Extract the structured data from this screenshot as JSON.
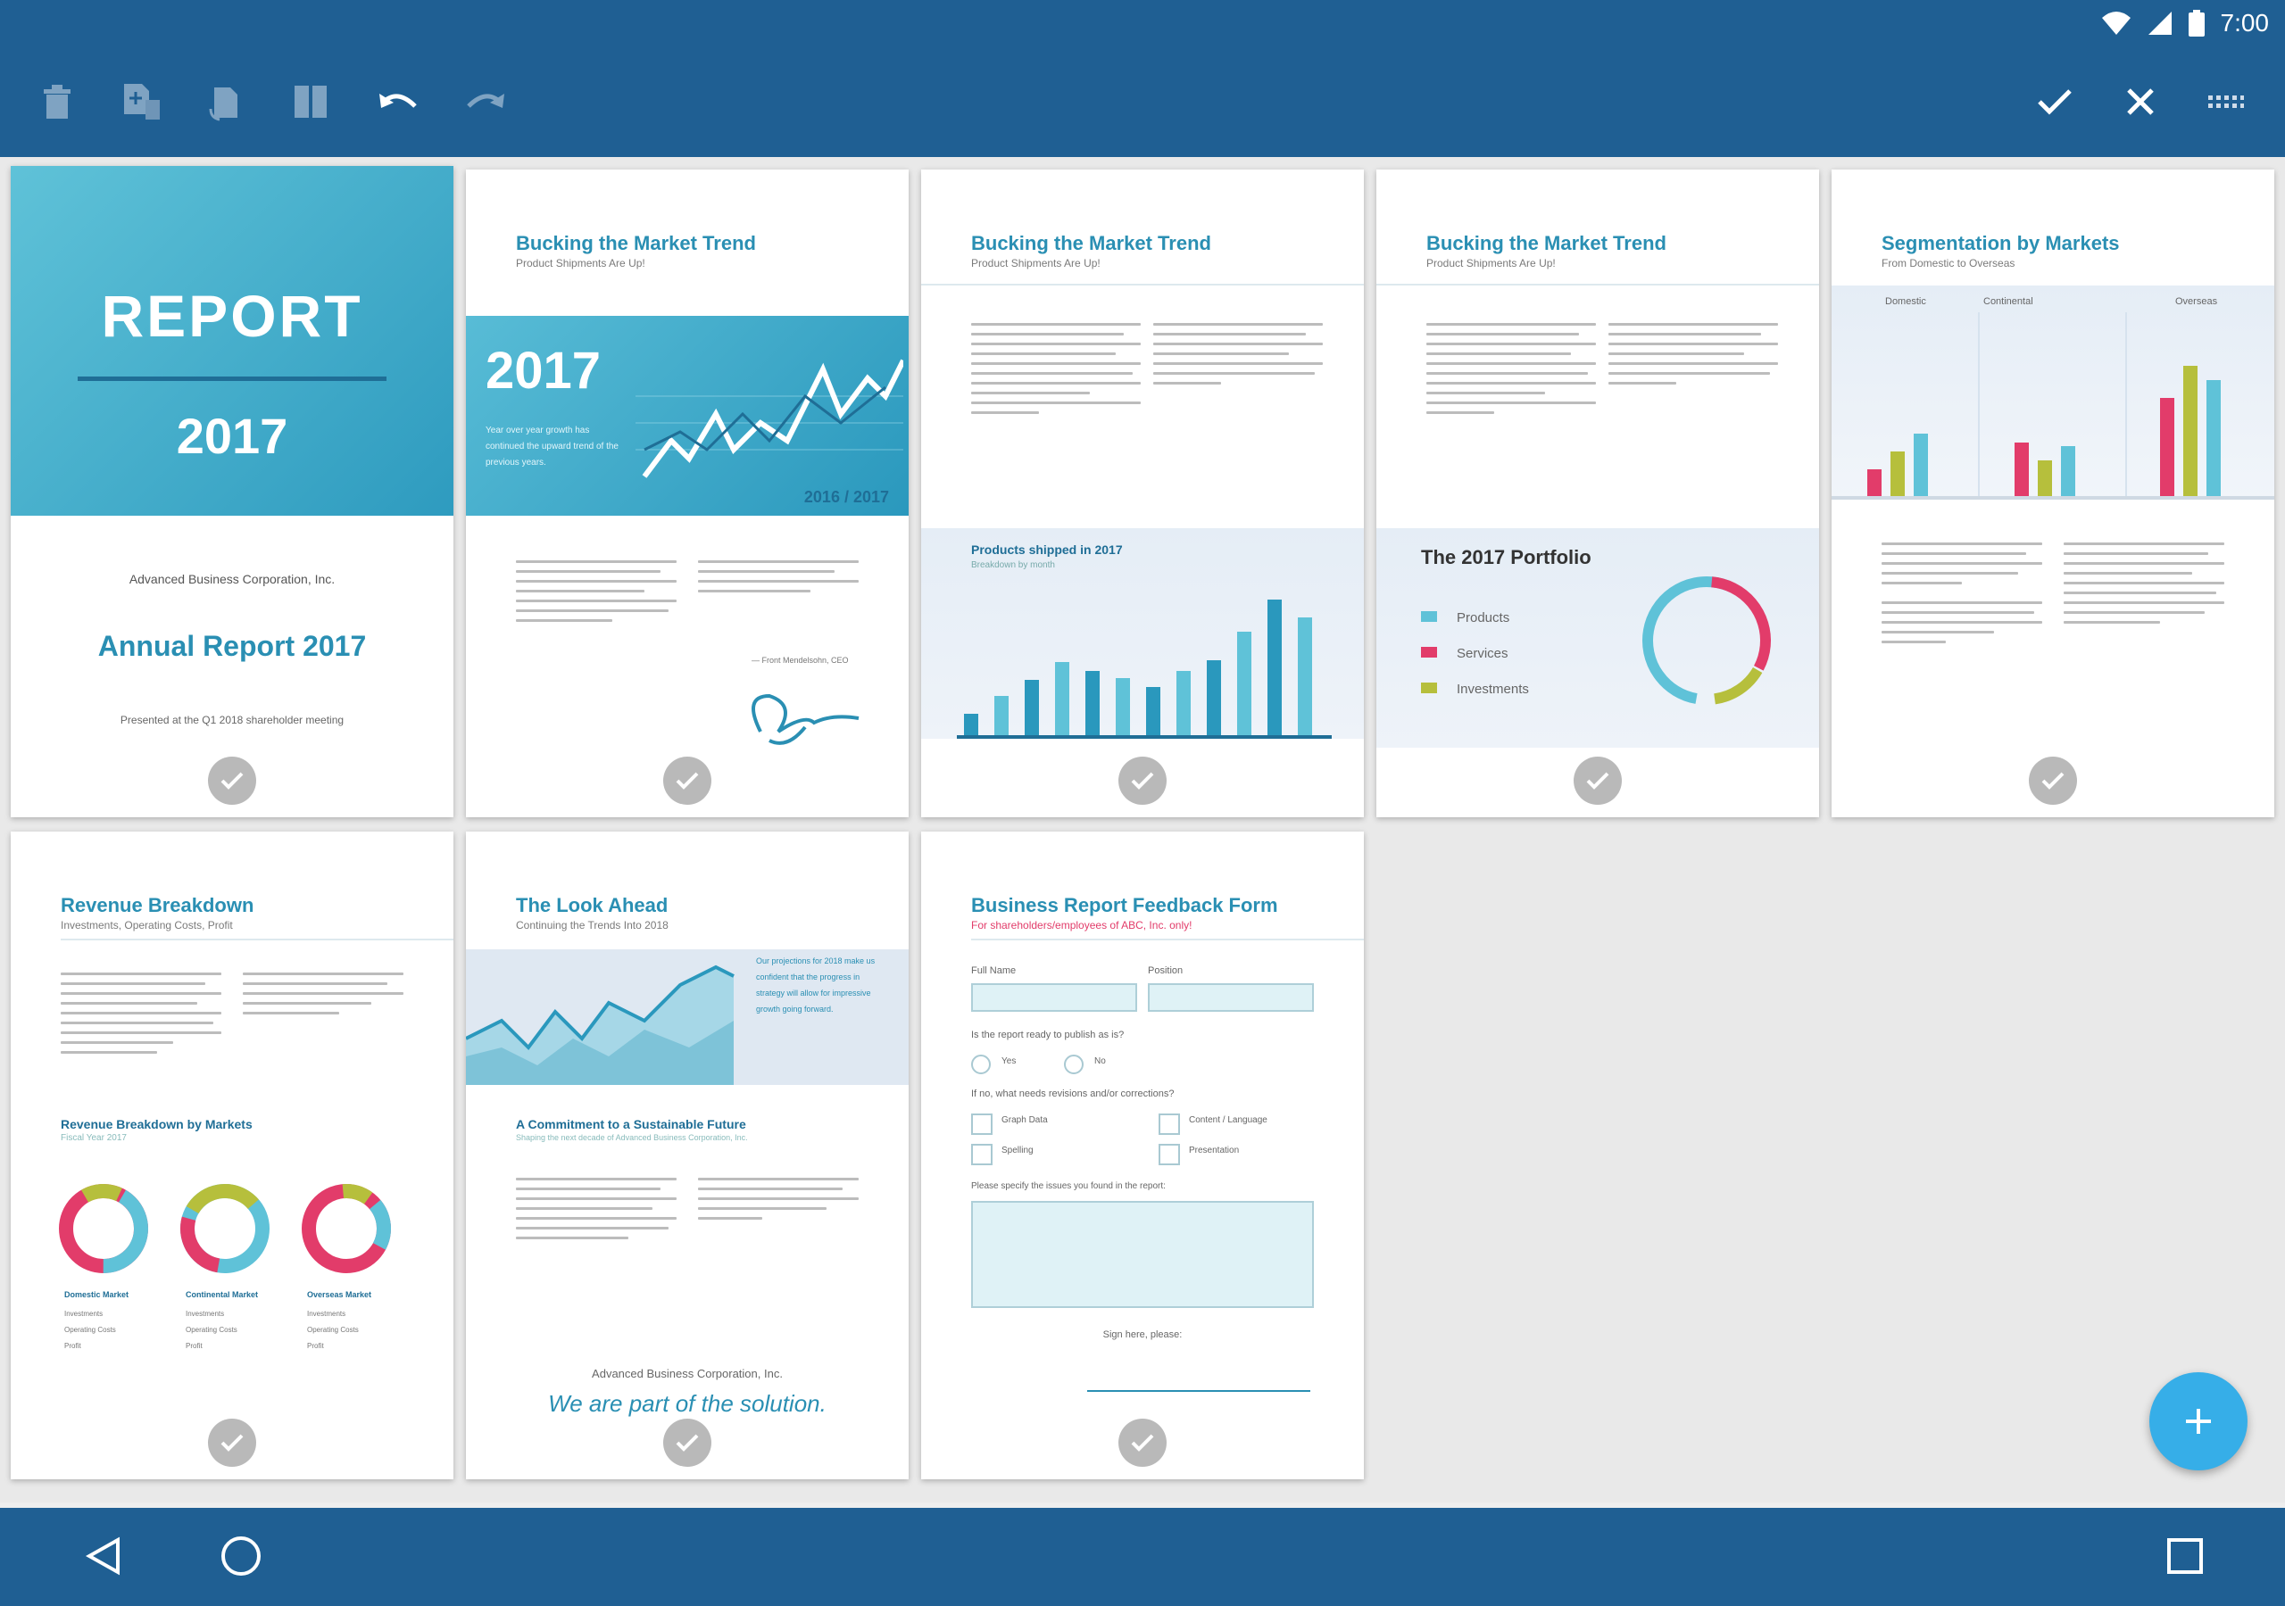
{
  "status": {
    "time": "7:00"
  },
  "toolbar": {
    "delete_icon": "trash-icon",
    "insert_icon": "insert-page-icon",
    "rotate_icon": "rotate-page-icon",
    "extract_icon": "extract-pages-icon",
    "undo_icon": "undo-icon",
    "redo_icon": "redo-icon",
    "done_icon": "check-icon",
    "close_icon": "close-icon",
    "grid_icon": "grid-icon"
  },
  "pages": {
    "p1": {
      "title": "REPORT",
      "year": "2017",
      "company": "Advanced Business Corporation, Inc.",
      "subtitle": "Annual Report 2017",
      "note": "Presented at the Q1 2018 shareholder meeting"
    },
    "p2": {
      "title": "Bucking the Market Trend",
      "sub": "Product Shipments Are Up!",
      "banner_year": "2017",
      "banner_text": "Year over year growth has continued the upward trend of the previous years.",
      "banner_range": "2016 / 2017",
      "quote_author": "— Front Mendelsohn, CEO"
    },
    "p3": {
      "title": "Bucking the Market Trend",
      "sub": "Product Shipments Are Up!",
      "chart_title": "Products shipped in 2017",
      "chart_sub": "Breakdown by month"
    },
    "p4": {
      "title": "Bucking the Market Trend",
      "sub": "Product Shipments Are Up!",
      "portfolio_title": "The 2017 Portfolio",
      "legend": [
        "Products",
        "Services",
        "Investments"
      ]
    },
    "p5": {
      "title": "Segmentation by Markets",
      "sub": "From Domestic to Overseas",
      "columns": [
        "Domestic",
        "Continental",
        "Overseas"
      ]
    },
    "p6": {
      "title": "Revenue Breakdown",
      "sub": "Investments, Operating Costs, Profit",
      "section": "Revenue Breakdown by Markets",
      "section_sub": "Fiscal Year 2017",
      "markets": [
        "Domestic Market",
        "Continental Market",
        "Overseas Market"
      ],
      "rows": [
        "Investments",
        "Operating Costs",
        "Profit"
      ]
    },
    "p7": {
      "title": "The Look Ahead",
      "sub": "Continuing the Trends Into 2018",
      "box_text": "Our projections for 2018 make us confident that the progress in strategy will allow for impressive growth going forward.",
      "section": "A Commitment to a Sustainable Future",
      "section_sub": "Shaping the next decade of Advanced Business Corporation, Inc.",
      "company": "Advanced Business Corporation, Inc.",
      "slogan": "We are part of the solution."
    },
    "p8": {
      "title": "Business Report Feedback Form",
      "sub": "For shareholders/employees of ABC, Inc. only!",
      "full_name": "Full Name",
      "position": "Position",
      "question1": "Is the report ready to publish as is?",
      "yes": "Yes",
      "no": "No",
      "question2": "If no, what needs revisions and/or corrections?",
      "opt1": "Graph Data",
      "opt2": "Content / Language",
      "opt3": "Spelling",
      "opt4": "Presentation",
      "issues_label": "Please specify the issues you found in the report:",
      "sign": "Sign here, please:"
    }
  },
  "fab_icon": "plus-icon",
  "nav": {
    "back_icon": "back-icon",
    "home_icon": "home-icon",
    "recents_icon": "recents-icon"
  }
}
